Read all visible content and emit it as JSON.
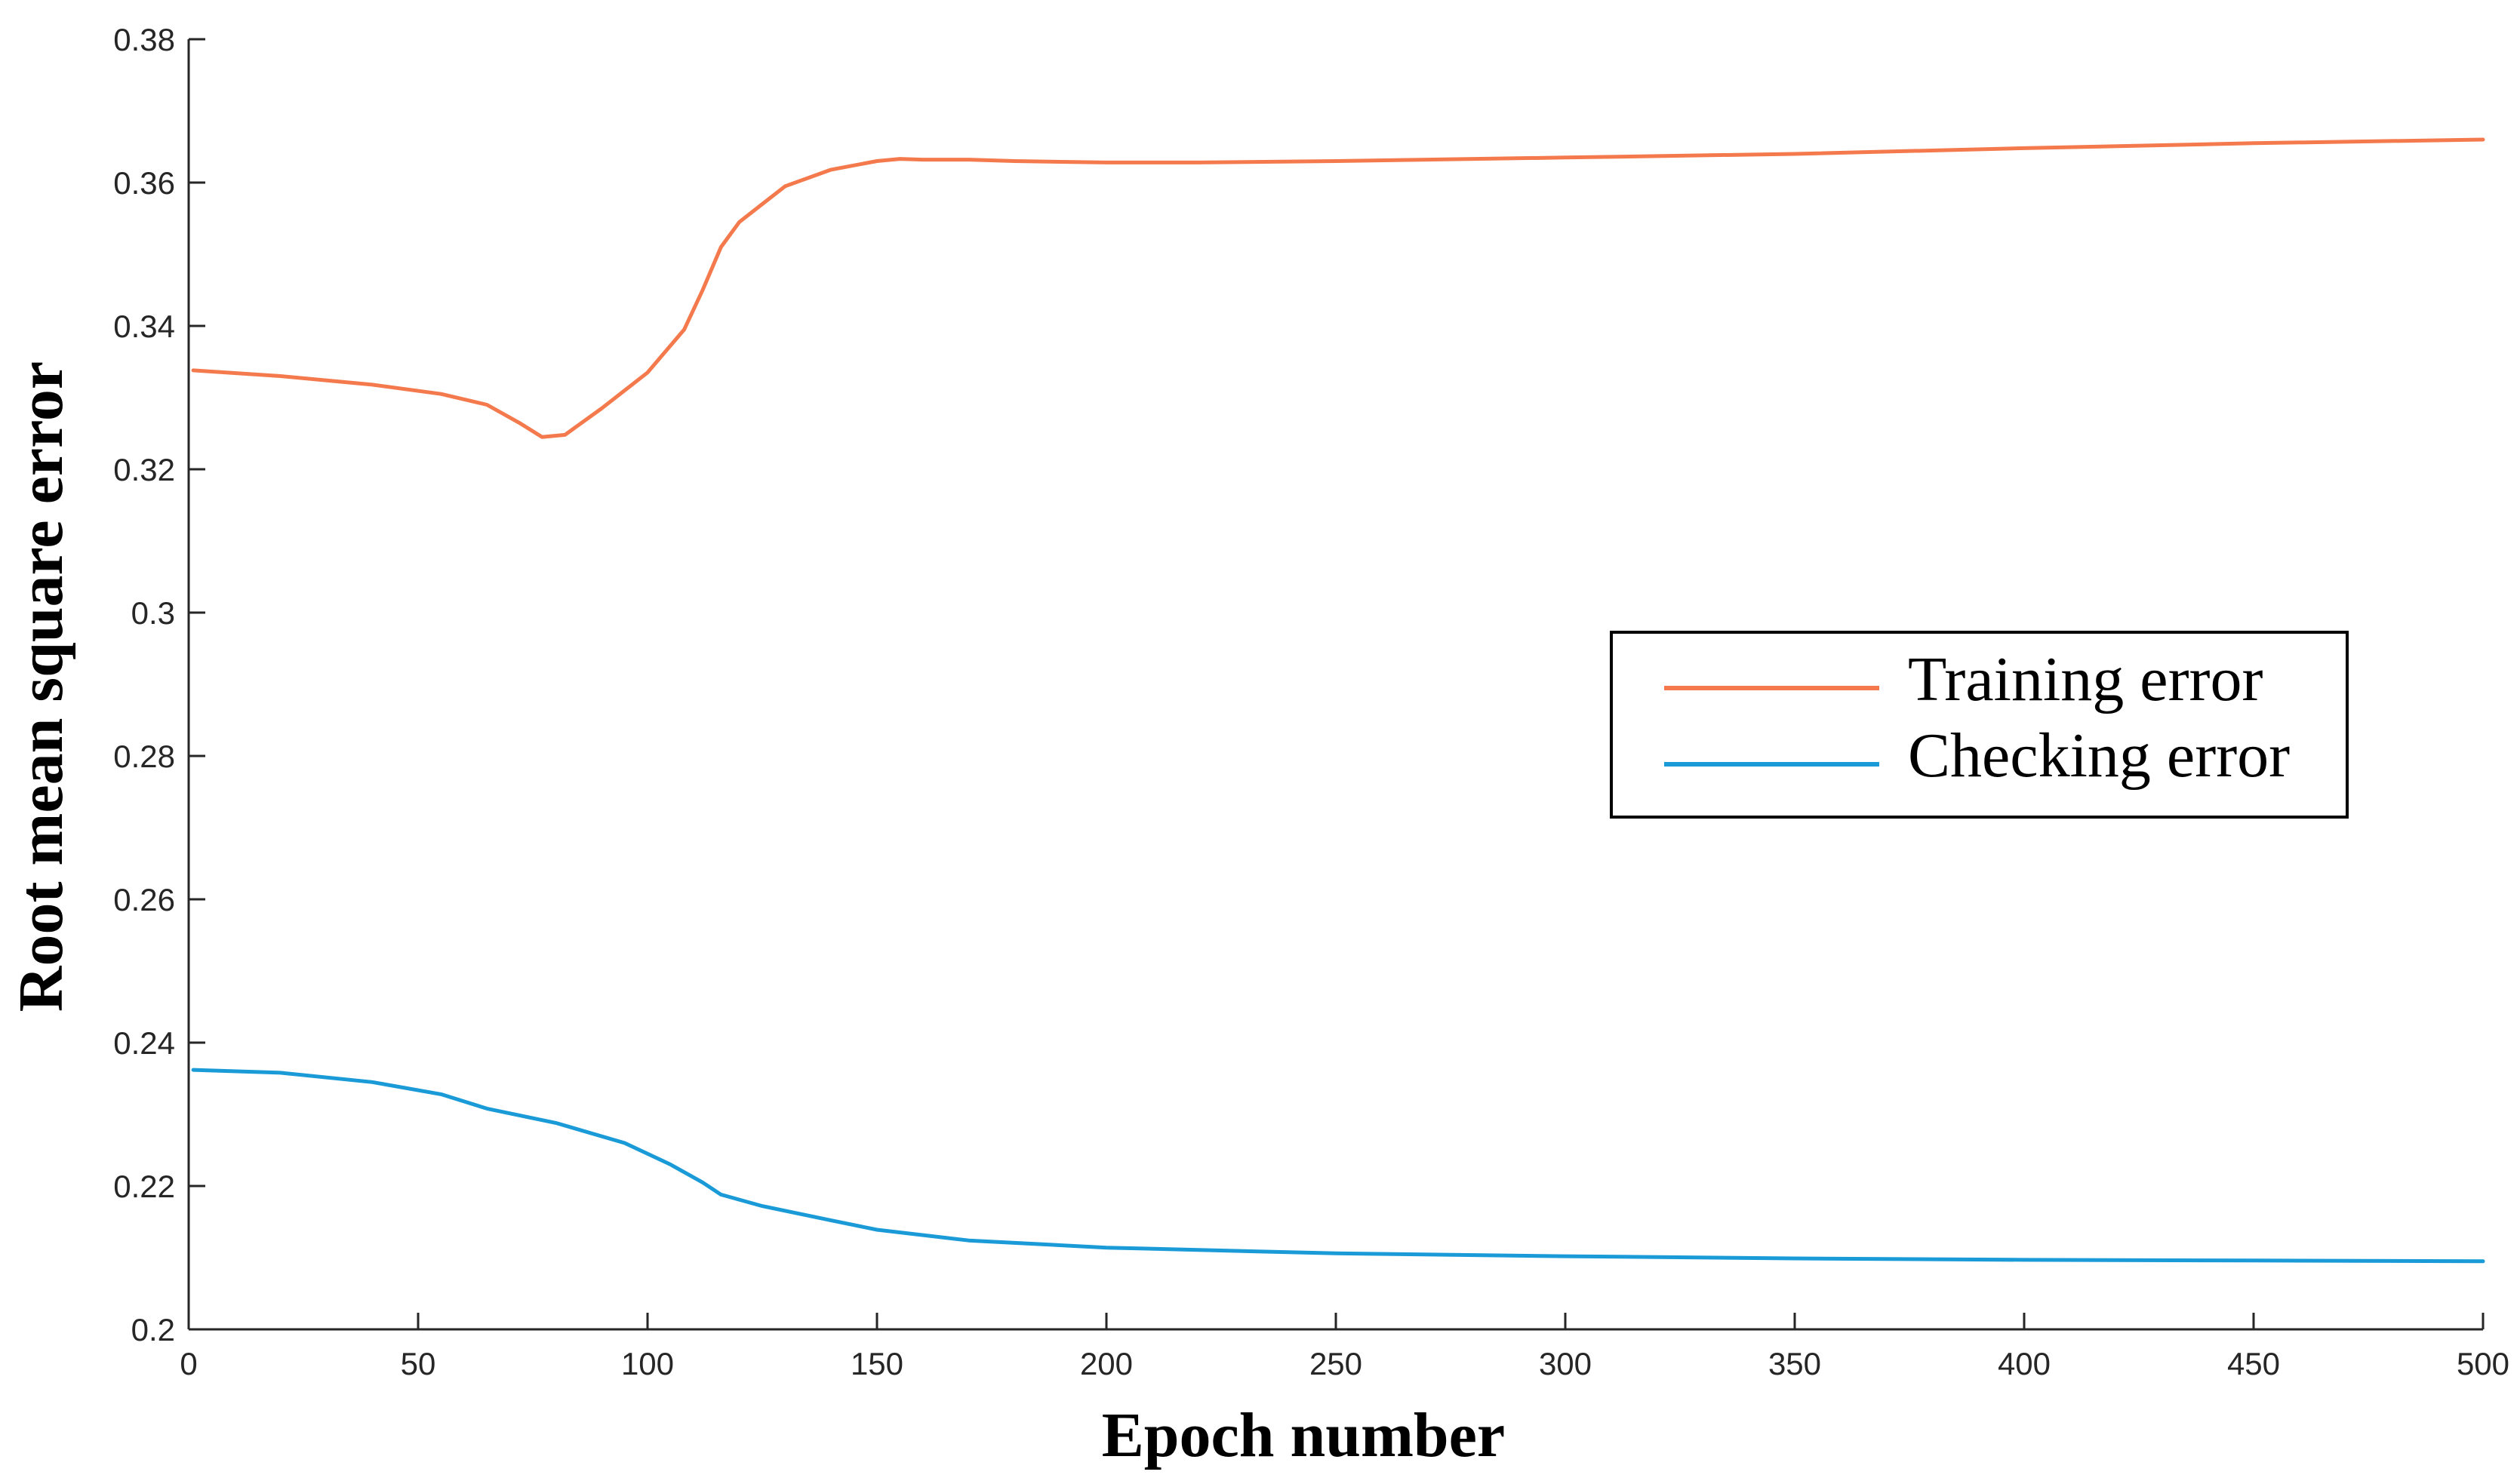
{
  "chart_data": {
    "type": "line",
    "title": "",
    "xlabel": "Epoch number",
    "ylabel": "Root mean square error",
    "xlim": [
      0,
      500
    ],
    "ylim": [
      0.2,
      0.38
    ],
    "xticks": [
      0,
      50,
      100,
      150,
      200,
      250,
      300,
      350,
      400,
      450,
      500
    ],
    "xtick_labels": [
      "0",
      "50",
      "100",
      "150",
      "200",
      "250",
      "300",
      "350",
      "400",
      "450",
      "500"
    ],
    "yticks": [
      0.2,
      0.22,
      0.24,
      0.26,
      0.28,
      0.3,
      0.32,
      0.34,
      0.36,
      0.38
    ],
    "ytick_labels": [
      "0.2",
      "0.22",
      "0.24",
      "0.26",
      "0.28",
      "0.3",
      "0.32",
      "0.34",
      "0.36",
      "0.38"
    ],
    "grid": false,
    "legend_position": "center-right",
    "series": [
      {
        "name": "Training error",
        "color": "#f47a4d",
        "x": [
          1,
          20,
          40,
          55,
          65,
          72,
          77,
          82,
          90,
          100,
          108,
          112,
          116,
          120,
          125,
          130,
          140,
          150,
          155,
          160,
          170,
          180,
          200,
          220,
          250,
          300,
          350,
          400,
          450,
          500
        ],
        "y": [
          0.3338,
          0.333,
          0.3318,
          0.3305,
          0.329,
          0.3265,
          0.3245,
          0.3248,
          0.3285,
          0.3335,
          0.3395,
          0.345,
          0.351,
          0.3545,
          0.357,
          0.3595,
          0.3618,
          0.363,
          0.3633,
          0.3632,
          0.3632,
          0.363,
          0.3628,
          0.3628,
          0.363,
          0.3635,
          0.364,
          0.3648,
          0.3655,
          0.366
        ]
      },
      {
        "name": "Checking error",
        "color": "#1a9bd7",
        "x": [
          1,
          20,
          40,
          55,
          65,
          80,
          95,
          105,
          112,
          116,
          125,
          140,
          150,
          170,
          200,
          250,
          300,
          350,
          400,
          450,
          500
        ],
        "y": [
          0.2362,
          0.2358,
          0.2345,
          0.2328,
          0.2308,
          0.2288,
          0.226,
          0.223,
          0.2205,
          0.2188,
          0.2172,
          0.2152,
          0.2139,
          0.2124,
          0.2114,
          0.2106,
          0.2102,
          0.2099,
          0.2097,
          0.2096,
          0.2095
        ]
      }
    ]
  }
}
